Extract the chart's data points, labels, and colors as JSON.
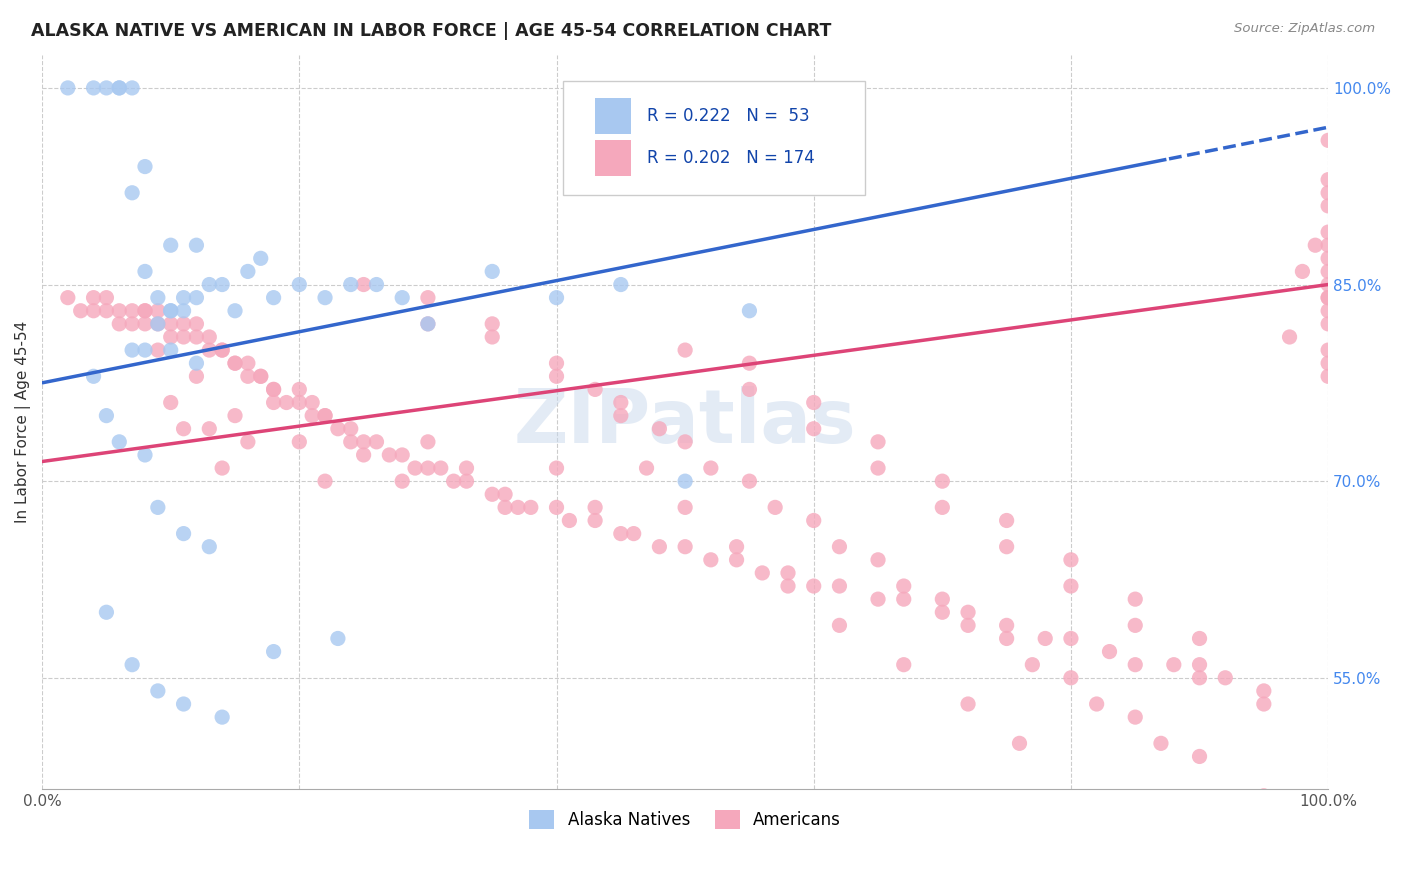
{
  "title": "ALASKA NATIVE VS AMERICAN IN LABOR FORCE | AGE 45-54 CORRELATION CHART",
  "source": "Source: ZipAtlas.com",
  "ylabel": "In Labor Force | Age 45-54",
  "xlim": [
    0.0,
    1.0
  ],
  "ylim": [
    0.465,
    1.025
  ],
  "y_tick_vals": [
    0.55,
    0.7,
    0.85,
    1.0
  ],
  "y_tick_labels": [
    "55.0%",
    "70.0%",
    "85.0%",
    "100.0%"
  ],
  "legend_r_blue": "0.222",
  "legend_n_blue": "53",
  "legend_r_pink": "0.202",
  "legend_n_pink": "174",
  "blue_color": "#A8C8F0",
  "pink_color": "#F5A8BC",
  "trend_blue": "#3366CC",
  "trend_pink": "#DD4477",
  "watermark": "ZIPatlas",
  "blue_trend_intercept": 0.775,
  "blue_trend_slope": 0.195,
  "blue_trend_dash_from": 0.875,
  "pink_trend_intercept": 0.715,
  "pink_trend_slope": 0.135,
  "blue_x": [
    0.02,
    0.04,
    0.05,
    0.06,
    0.06,
    0.07,
    0.07,
    0.08,
    0.09,
    0.1,
    0.1,
    0.11,
    0.11,
    0.12,
    0.13,
    0.14,
    0.16,
    0.17,
    0.18,
    0.2,
    0.22,
    0.24,
    0.26,
    0.28,
    0.3,
    0.35,
    0.4,
    0.45,
    0.5,
    0.55,
    0.04,
    0.05,
    0.06,
    0.07,
    0.08,
    0.09,
    0.1,
    0.12,
    0.15,
    0.08,
    0.09,
    0.11,
    0.13,
    0.05,
    0.07,
    0.09,
    0.11,
    0.14,
    0.18,
    0.23,
    0.08,
    0.1,
    0.12
  ],
  "blue_y": [
    1.0,
    1.0,
    1.0,
    1.0,
    1.0,
    1.0,
    0.92,
    0.86,
    0.84,
    0.83,
    0.83,
    0.83,
    0.84,
    0.84,
    0.85,
    0.85,
    0.86,
    0.87,
    0.84,
    0.85,
    0.84,
    0.85,
    0.85,
    0.84,
    0.82,
    0.86,
    0.84,
    0.85,
    0.7,
    0.83,
    0.78,
    0.75,
    0.73,
    0.8,
    0.8,
    0.82,
    0.8,
    0.79,
    0.83,
    0.72,
    0.68,
    0.66,
    0.65,
    0.6,
    0.56,
    0.54,
    0.53,
    0.52,
    0.57,
    0.58,
    0.94,
    0.88,
    0.88
  ],
  "pink_x": [
    0.02,
    0.03,
    0.04,
    0.04,
    0.05,
    0.05,
    0.06,
    0.06,
    0.07,
    0.07,
    0.08,
    0.08,
    0.09,
    0.09,
    0.1,
    0.1,
    0.11,
    0.11,
    0.12,
    0.12,
    0.13,
    0.13,
    0.14,
    0.14,
    0.15,
    0.15,
    0.16,
    0.16,
    0.17,
    0.17,
    0.18,
    0.18,
    0.19,
    0.2,
    0.2,
    0.21,
    0.21,
    0.22,
    0.22,
    0.23,
    0.24,
    0.24,
    0.25,
    0.26,
    0.27,
    0.28,
    0.29,
    0.3,
    0.31,
    0.32,
    0.33,
    0.35,
    0.36,
    0.37,
    0.38,
    0.4,
    0.41,
    0.43,
    0.45,
    0.46,
    0.48,
    0.5,
    0.52,
    0.54,
    0.56,
    0.58,
    0.6,
    0.62,
    0.65,
    0.67,
    0.7,
    0.72,
    0.75,
    0.78,
    0.8,
    0.83,
    0.85,
    0.88,
    0.9,
    0.92,
    0.95,
    0.97,
    0.98,
    0.99,
    1.0,
    1.0,
    1.0,
    1.0,
    1.0,
    1.0,
    1.0,
    1.0,
    1.0,
    1.0,
    1.0,
    1.0,
    1.0,
    1.0,
    1.0,
    1.0,
    0.08,
    0.09,
    0.1,
    0.11,
    0.12,
    0.13,
    0.14,
    0.15,
    0.16,
    0.18,
    0.2,
    0.22,
    0.25,
    0.28,
    0.3,
    0.33,
    0.36,
    0.4,
    0.43,
    0.47,
    0.5,
    0.54,
    0.58,
    0.62,
    0.67,
    0.72,
    0.76,
    0.43,
    0.48,
    0.52,
    0.57,
    0.62,
    0.67,
    0.72,
    0.77,
    0.82,
    0.87,
    0.55,
    0.6,
    0.65,
    0.7,
    0.75,
    0.8,
    0.85,
    0.9,
    0.35,
    0.4,
    0.45,
    0.25,
    0.3,
    0.5,
    0.55,
    0.6,
    0.65,
    0.7,
    0.75,
    0.8,
    0.85,
    0.9,
    0.95,
    0.3,
    0.35,
    0.4,
    0.45,
    0.5,
    0.55,
    0.6,
    0.65,
    0.7,
    0.75,
    0.8,
    0.85,
    0.9,
    0.95
  ],
  "pink_y": [
    0.84,
    0.83,
    0.84,
    0.83,
    0.84,
    0.83,
    0.83,
    0.82,
    0.83,
    0.82,
    0.83,
    0.82,
    0.83,
    0.82,
    0.82,
    0.81,
    0.82,
    0.81,
    0.82,
    0.81,
    0.81,
    0.8,
    0.8,
    0.8,
    0.79,
    0.79,
    0.79,
    0.78,
    0.78,
    0.78,
    0.77,
    0.77,
    0.76,
    0.77,
    0.76,
    0.76,
    0.75,
    0.75,
    0.75,
    0.74,
    0.74,
    0.73,
    0.73,
    0.73,
    0.72,
    0.72,
    0.71,
    0.71,
    0.71,
    0.7,
    0.7,
    0.69,
    0.69,
    0.68,
    0.68,
    0.68,
    0.67,
    0.67,
    0.66,
    0.66,
    0.65,
    0.65,
    0.64,
    0.64,
    0.63,
    0.63,
    0.62,
    0.62,
    0.61,
    0.61,
    0.6,
    0.6,
    0.59,
    0.58,
    0.58,
    0.57,
    0.56,
    0.56,
    0.55,
    0.55,
    0.54,
    0.81,
    0.86,
    0.88,
    0.82,
    0.84,
    0.87,
    0.78,
    0.91,
    0.83,
    0.86,
    0.89,
    0.8,
    0.85,
    0.88,
    0.93,
    0.79,
    0.84,
    0.92,
    0.96,
    0.83,
    0.8,
    0.76,
    0.74,
    0.78,
    0.74,
    0.71,
    0.75,
    0.73,
    0.76,
    0.73,
    0.7,
    0.72,
    0.7,
    0.73,
    0.71,
    0.68,
    0.71,
    0.68,
    0.71,
    0.68,
    0.65,
    0.62,
    0.59,
    0.56,
    0.53,
    0.5,
    0.77,
    0.74,
    0.71,
    0.68,
    0.65,
    0.62,
    0.59,
    0.56,
    0.53,
    0.5,
    0.79,
    0.76,
    0.73,
    0.7,
    0.67,
    0.64,
    0.61,
    0.58,
    0.81,
    0.78,
    0.75,
    0.85,
    0.82,
    0.8,
    0.77,
    0.74,
    0.71,
    0.68,
    0.65,
    0.62,
    0.59,
    0.56,
    0.53,
    0.84,
    0.82,
    0.79,
    0.76,
    0.73,
    0.7,
    0.67,
    0.64,
    0.61,
    0.58,
    0.55,
    0.52,
    0.49,
    0.46
  ]
}
